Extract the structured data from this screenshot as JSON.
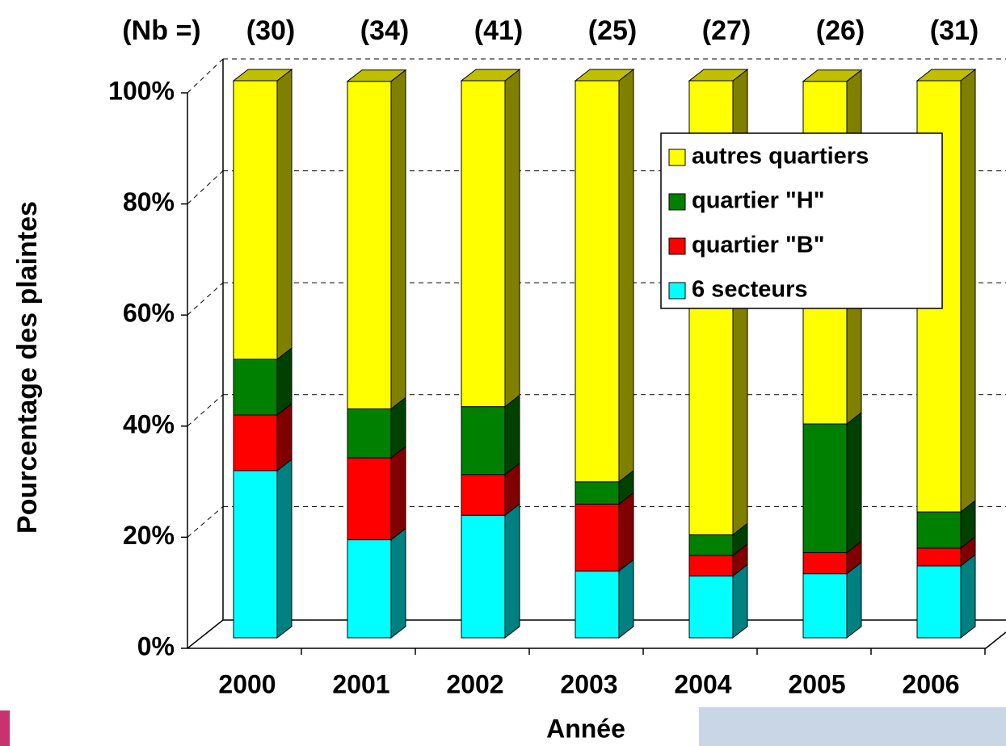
{
  "chart_data": {
    "type": "bar",
    "stacked": true,
    "three_d": true,
    "annotation_title": "(Nb =)",
    "annotations": [
      "(30)",
      "(34)",
      "(41)",
      "(25)",
      "(27)",
      "(26)",
      "(31)"
    ],
    "xlabel": "Année",
    "ylabel": "Pourcentage des plaintes",
    "categories": [
      "2000",
      "2001",
      "2002",
      "2003",
      "2004",
      "2005",
      "2006"
    ],
    "series": [
      {
        "name": "6 secteurs",
        "color": "#00ffff",
        "values": [
          30.0,
          17.6,
          22.0,
          12.0,
          11.1,
          11.5,
          12.9
        ]
      },
      {
        "name": "quartier \"B\"",
        "color": "#ff0000",
        "values": [
          10.0,
          14.7,
          7.3,
          12.0,
          3.7,
          3.8,
          3.2
        ]
      },
      {
        "name": "quartier \"H\"",
        "color": "#008000",
        "values": [
          10.0,
          8.8,
          12.2,
          4.0,
          3.7,
          23.1,
          6.5
        ]
      },
      {
        "name": "autres quartiers",
        "color": "#ffff00",
        "values": [
          50.0,
          58.8,
          58.5,
          72.0,
          81.5,
          61.5,
          77.4
        ]
      }
    ],
    "ylim": [
      0,
      100
    ],
    "yticks": [
      {
        "value": 0,
        "label": "0%"
      },
      {
        "value": 20,
        "label": "20%"
      },
      {
        "value": 40,
        "label": "40%"
      },
      {
        "value": 60,
        "label": "60%"
      },
      {
        "value": 80,
        "label": "80%"
      },
      {
        "value": 100,
        "label": "100%"
      }
    ],
    "grid": true,
    "legend": "upper right"
  }
}
